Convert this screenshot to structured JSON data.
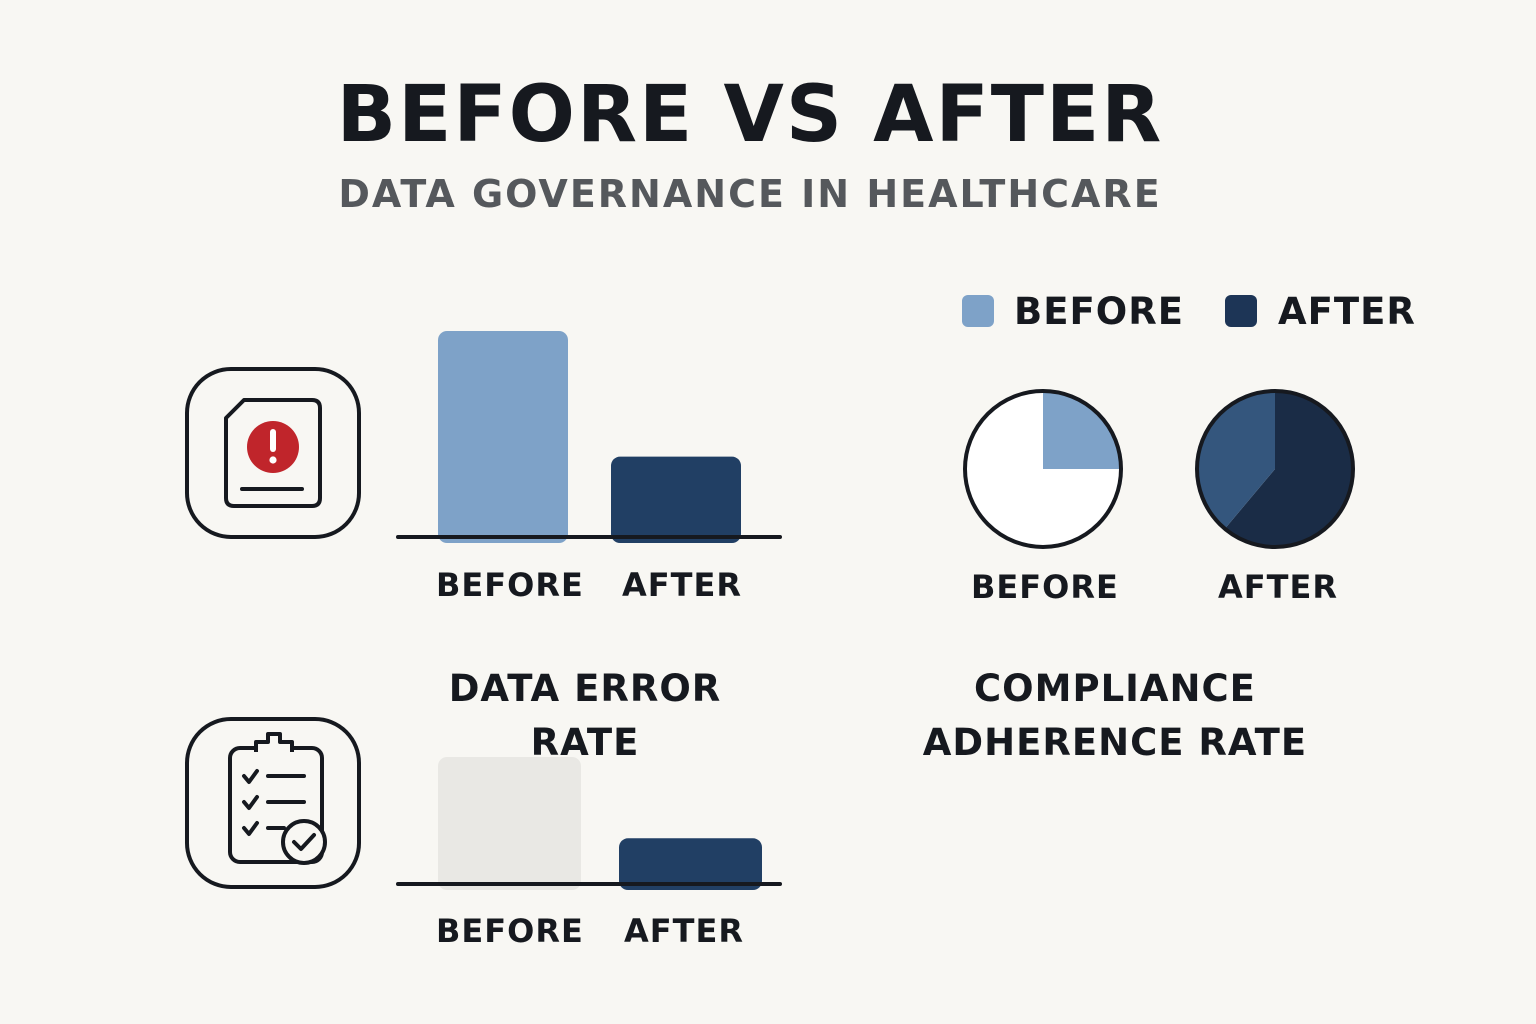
{
  "header": {
    "title": "BEFORE VS AFTER",
    "subtitle": "DATA GOVERNANCE IN HEALTHCARE"
  },
  "colors": {
    "before": "#7ea2c8",
    "after": "#213f64",
    "before_faded": "#e9e8e4",
    "pie_after_dark": "#1a2c46",
    "pie_after_light": "#34567d",
    "alert": "#c0252b",
    "text": "#16191f",
    "subtitle": "#55585c"
  },
  "legend": {
    "items": [
      {
        "label": "BEFORE",
        "color": "#7ea2c8"
      },
      {
        "label": "AFTER",
        "color": "#1d3556"
      }
    ]
  },
  "chart_data": [
    {
      "type": "bar",
      "caption": "DATA ERROR RATE",
      "icon": "document-alert-icon",
      "categories": [
        "BEFORE",
        "AFTER"
      ],
      "values": [
        100,
        39
      ],
      "ylim": [
        0,
        100
      ]
    },
    {
      "type": "bar",
      "icon": "checklist-clipboard-icon",
      "categories": [
        "BEFORE",
        "AFTER"
      ],
      "values": [
        100,
        36
      ],
      "ylim": [
        0,
        100
      ]
    },
    {
      "type": "pie",
      "caption_lines": [
        "COMPLIANCE",
        "ADHERENCE RATE"
      ],
      "pies": [
        {
          "label": "BEFORE",
          "value": 25
        },
        {
          "label": "AFTER",
          "value": 100
        }
      ]
    }
  ]
}
